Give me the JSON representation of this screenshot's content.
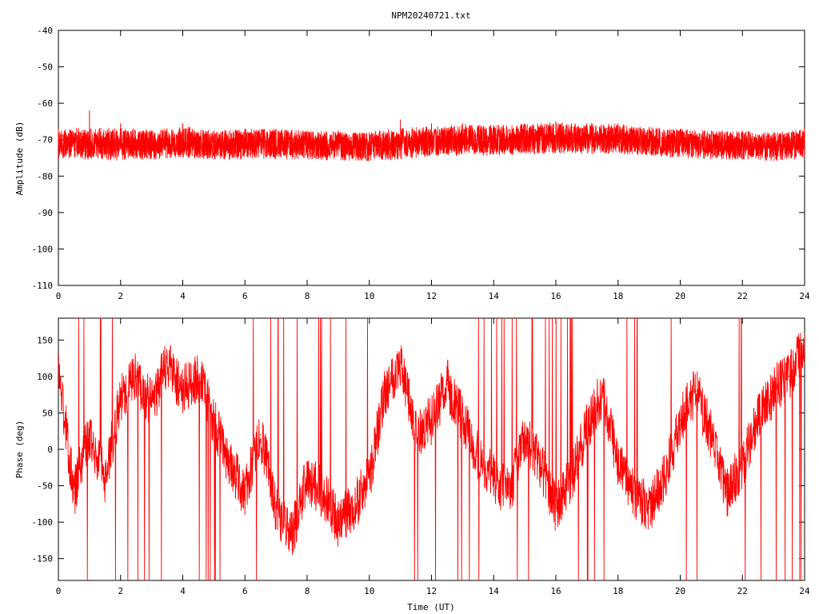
{
  "title": "NPM20240721.txt",
  "colors": {
    "series": "#ff0000",
    "axis": "#000000",
    "background": "#ffffff"
  },
  "chart_data": [
    {
      "type": "line",
      "title": "NPM20240721.txt",
      "xlabel": "",
      "ylabel": "Amplitude (dB)",
      "xlim": [
        0,
        24
      ],
      "ylim": [
        -110,
        -40
      ],
      "xticks": [
        "0",
        "2",
        "4",
        "6",
        "8",
        "10",
        "12",
        "14",
        "16",
        "18",
        "20",
        "22",
        "24"
      ],
      "yticks": [
        "-40",
        "-50",
        "-60",
        "-70",
        "-80",
        "-90",
        "-100",
        "-110"
      ],
      "grid": false,
      "x": [
        0,
        1,
        2,
        3,
        4,
        5,
        6,
        7,
        8,
        9,
        10,
        11,
        12,
        13,
        14,
        15,
        16,
        17,
        18,
        19,
        20,
        21,
        22,
        23,
        24
      ],
      "y_mean": [
        -71.5,
        -71.5,
        -71.0,
        -71.5,
        -71.0,
        -71.5,
        -71.5,
        -71.0,
        -71.5,
        -71.5,
        -72.0,
        -71.5,
        -70.5,
        -70.5,
        -70.0,
        -70.0,
        -69.5,
        -69.5,
        -70.0,
        -70.5,
        -71.0,
        -71.5,
        -71.5,
        -72.0,
        -71.0
      ],
      "y_min": [
        -75.5,
        -75.5,
        -76.0,
        -75.5,
        -75.0,
        -75.5,
        -75.5,
        -75.5,
        -75.5,
        -76.0,
        -76.0,
        -75.5,
        -74.5,
        -74.5,
        -74.5,
        -74.0,
        -74.0,
        -74.0,
        -74.0,
        -74.5,
        -75.0,
        -75.5,
        -75.5,
        -76.0,
        -75.0
      ],
      "y_max": [
        -67.0,
        -62.0,
        -65.5,
        -67.5,
        -65.5,
        -67.5,
        -67.0,
        -67.0,
        -67.5,
        -67.5,
        -68.0,
        -64.5,
        -65.5,
        -65.5,
        -66.0,
        -65.5,
        -65.0,
        -65.5,
        -65.5,
        -66.5,
        -67.0,
        -67.5,
        -67.5,
        -68.0,
        -67.0
      ]
    },
    {
      "type": "line",
      "title": "",
      "xlabel": "Time (UT)",
      "ylabel": "Phase (deg)",
      "xlim": [
        0,
        24
      ],
      "ylim": [
        -180,
        180
      ],
      "xticks": [
        "0",
        "2",
        "4",
        "6",
        "8",
        "10",
        "12",
        "14",
        "16",
        "18",
        "20",
        "22",
        "24"
      ],
      "yticks": [
        "150",
        "100",
        "50",
        "0",
        "-50",
        "-100",
        "-150"
      ],
      "grid": false,
      "x": [
        0,
        0.5,
        1,
        1.5,
        2,
        2.5,
        3,
        3.5,
        4,
        4.5,
        5,
        5.5,
        6,
        6.5,
        7,
        7.5,
        8,
        8.5,
        9,
        9.5,
        10,
        10.5,
        11,
        11.5,
        12,
        12.5,
        13,
        13.5,
        14,
        14.5,
        15,
        15.5,
        16,
        16.5,
        17,
        17.5,
        18,
        18.5,
        19,
        19.5,
        20,
        20.5,
        21,
        21.5,
        22,
        22.5,
        23,
        23.5,
        24
      ],
      "y": [
        110,
        -60,
        20,
        -40,
        70,
        100,
        60,
        120,
        80,
        100,
        40,
        -20,
        -60,
        20,
        -80,
        -120,
        -40,
        -60,
        -100,
        -80,
        -40,
        80,
        120,
        20,
        40,
        90,
        40,
        -10,
        -40,
        -60,
        20,
        -20,
        -80,
        -40,
        30,
        80,
        -20,
        -60,
        -80,
        -40,
        40,
        80,
        20,
        -60,
        -20,
        40,
        80,
        100,
        150
      ]
    }
  ]
}
